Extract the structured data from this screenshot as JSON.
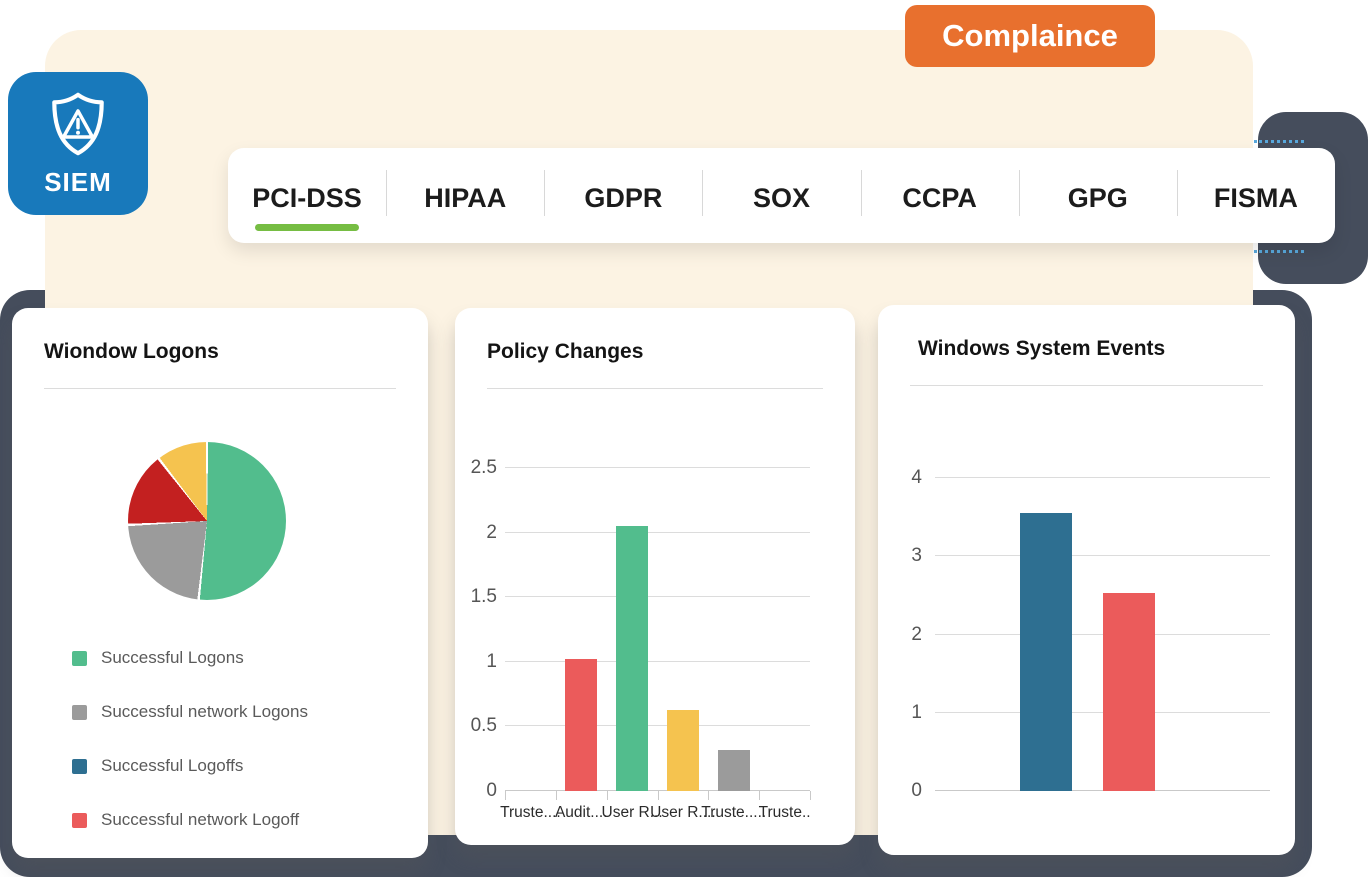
{
  "badge": {
    "label": "Complaince",
    "color": "#E8702E"
  },
  "siem_tile": {
    "label": "SIEM",
    "color": "#1879BB",
    "icon": "shield-alert-icon"
  },
  "tab_bar": {
    "active_underline_color": "#76BD43",
    "tabs": [
      {
        "label": "PCI-DSS",
        "active": true
      },
      {
        "label": "HIPAA",
        "active": false
      },
      {
        "label": "GDPR",
        "active": false
      },
      {
        "label": "SOX",
        "active": false
      },
      {
        "label": "CCPA",
        "active": false
      },
      {
        "label": "GPG",
        "active": false
      },
      {
        "label": "FISMA",
        "active": false
      }
    ]
  },
  "chart_data": [
    {
      "type": "pie",
      "title": "Wiondow Logons",
      "slices": [
        {
          "label": "Successful Logons",
          "percent": 51.7,
          "color": "#52BD8D"
        },
        {
          "label": "Successful network Logons",
          "percent": 22.5,
          "color": "#9B9B9B"
        },
        {
          "label": "Successful network Logoff",
          "percent": 15.3,
          "color": "#C32020"
        },
        {
          "label": "",
          "percent": 10.5,
          "color": "#F5C34F"
        }
      ],
      "legend": [
        {
          "label": "Successful Logons",
          "color": "#52BD8D"
        },
        {
          "label": "Successful network Logons",
          "color": "#9B9B9B"
        },
        {
          "label": "Successful Logoffs",
          "color": "#2E6F91"
        },
        {
          "label": "Successful network Logoff",
          "color": "#EB5B5B"
        }
      ],
      "legend_position": "bottom"
    },
    {
      "type": "bar",
      "title": "Policy Changes",
      "categories": [
        "Truste....",
        "Audit....",
        "User R...",
        "User R....",
        "Truste.....",
        "Truste.."
      ],
      "bars": [
        {
          "category": "Audit....",
          "value": 1.02,
          "color": "#EB5B5B",
          "x_frac": 0.25
        },
        {
          "category": "User R...",
          "value": 2.05,
          "color": "#52BD8D",
          "x_frac": 0.4167
        },
        {
          "category": "User R....",
          "value": 0.63,
          "color": "#F5C34F",
          "x_frac": 0.5833
        },
        {
          "category": "Truste.....",
          "value": 0.32,
          "color": "#9B9B9B",
          "x_frac": 0.75
        }
      ],
      "yticks": [
        0,
        0.5,
        1,
        1.5,
        2,
        2.5
      ],
      "ylim": [
        0,
        2.5
      ],
      "grid": true
    },
    {
      "type": "bar",
      "title": "Windows System Events",
      "categories": [],
      "bars": [
        {
          "category": "",
          "value": 3.55,
          "color": "#2E6F91",
          "x_frac": 0.33
        },
        {
          "category": "",
          "value": 2.53,
          "color": "#EB5B5B",
          "x_frac": 0.58
        }
      ],
      "yticks": [
        0,
        1,
        2,
        3,
        4
      ],
      "ylim": [
        0,
        4
      ],
      "grid": true
    }
  ],
  "colors": {
    "cream_panel": "#FCF3E3",
    "dark_panel": "#454D5C",
    "badge_orange": "#E8702E",
    "siem_blue": "#1879BB",
    "active_tab_underline": "#76BD43"
  }
}
